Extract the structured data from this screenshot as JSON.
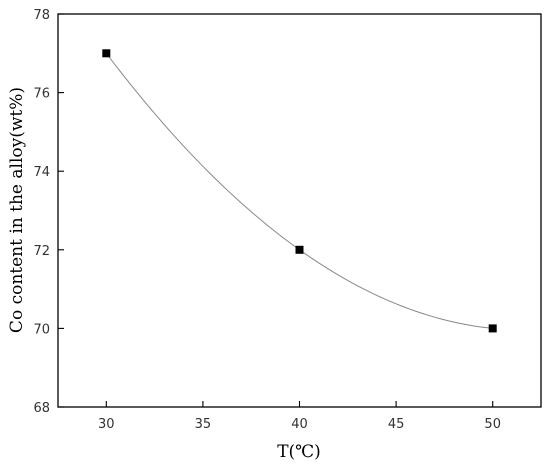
{
  "chart_data": {
    "type": "scatter",
    "xlabel": "T(℃)",
    "ylabel": "Co content in the alloy(wt%)",
    "xlim": [
      27.5,
      52.5
    ],
    "ylim": [
      68,
      78
    ],
    "xticks": [
      30,
      35,
      40,
      45,
      50
    ],
    "yticks": [
      68,
      70,
      72,
      74,
      76,
      78
    ],
    "xtick_labels": [
      "30",
      "35",
      "40",
      "45",
      "50"
    ],
    "ytick_labels": [
      "68",
      "70",
      "72",
      "74",
      "76",
      "78"
    ],
    "grid": false,
    "legend": "none",
    "fit_curve": "smooth",
    "marker_color": "#000000",
    "curve_color": "#888888",
    "series": [
      {
        "x": [
          30,
          40,
          50
        ],
        "y": [
          77,
          72,
          70
        ]
      }
    ]
  }
}
